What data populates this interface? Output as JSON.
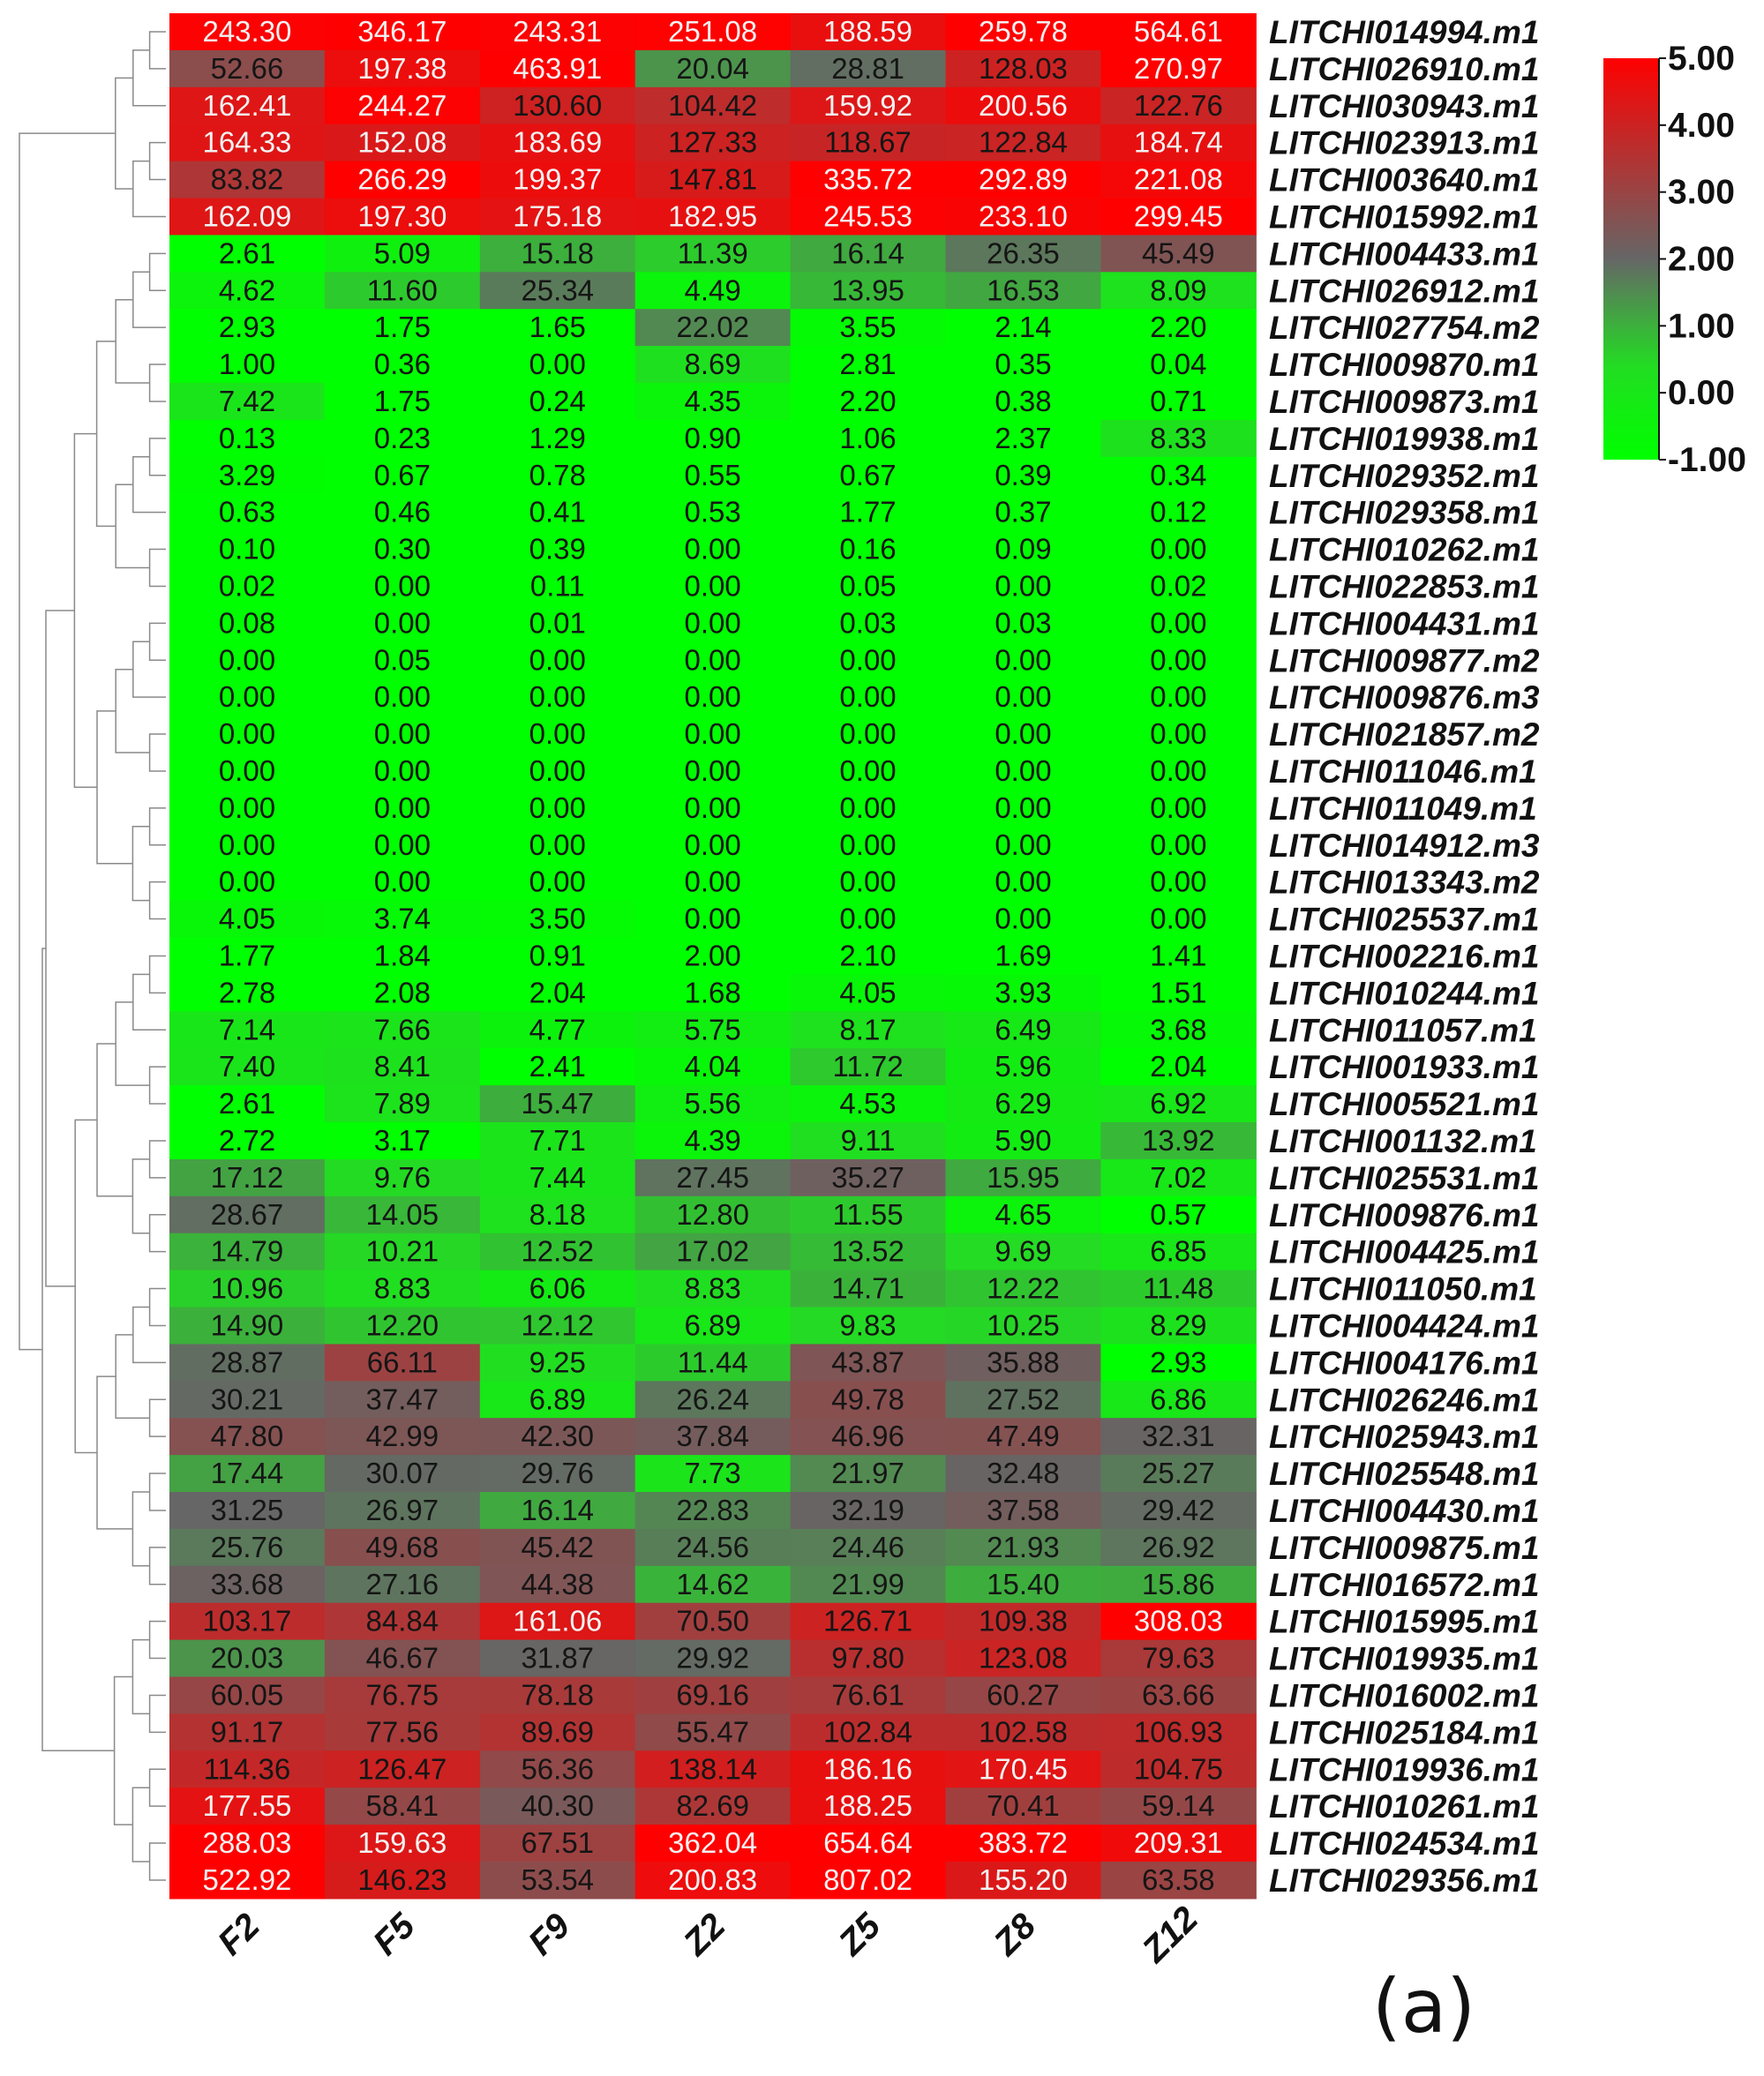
{
  "chart_data": {
    "type": "heatmap",
    "columns": [
      "F2",
      "F5",
      "F9",
      "Z2",
      "Z5",
      "Z8",
      "Z12"
    ],
    "rows": [
      "LITCHI014994.m1",
      "LITCHI026910.m1",
      "LITCHI030943.m1",
      "LITCHI023913.m1",
      "LITCHI003640.m1",
      "LITCHI015992.m1",
      "LITCHI004433.m1",
      "LITCHI026912.m1",
      "LITCHI027754.m2",
      "LITCHI009870.m1",
      "LITCHI009873.m1",
      "LITCHI019938.m1",
      "LITCHI029352.m1",
      "LITCHI029358.m1",
      "LITCHI010262.m1",
      "LITCHI022853.m1",
      "LITCHI004431.m1",
      "LITCHI009877.m2",
      "LITCHI009876.m3",
      "LITCHI021857.m2",
      "LITCHI011046.m1",
      "LITCHI011049.m1",
      "LITCHI014912.m3",
      "LITCHI013343.m2",
      "LITCHI025537.m1",
      "LITCHI002216.m1",
      "LITCHI010244.m1",
      "LITCHI011057.m1",
      "LITCHI001933.m1",
      "LITCHI005521.m1",
      "LITCHI001132.m1",
      "LITCHI025531.m1",
      "LITCHI009876.m1",
      "LITCHI004425.m1",
      "LITCHI011050.m1",
      "LITCHI004424.m1",
      "LITCHI004176.m1",
      "LITCHI026246.m1",
      "LITCHI025943.m1",
      "LITCHI025548.m1",
      "LITCHI004430.m1",
      "LITCHI009875.m1",
      "LITCHI016572.m1",
      "LITCHI015995.m1",
      "LITCHI019935.m1",
      "LITCHI016002.m1",
      "LITCHI025184.m1",
      "LITCHI019936.m1",
      "LITCHI010261.m1",
      "LITCHI024534.m1",
      "LITCHI029356.m1"
    ],
    "values": [
      [
        "243.30",
        "346.17",
        "243.31",
        "251.08",
        "188.59",
        "259.78",
        "564.61"
      ],
      [
        "52.66",
        "197.38",
        "463.91",
        "20.04",
        "28.81",
        "128.03",
        "270.97"
      ],
      [
        "162.41",
        "244.27",
        "130.60",
        "104.42",
        "159.92",
        "200.56",
        "122.76"
      ],
      [
        "164.33",
        "152.08",
        "183.69",
        "127.33",
        "118.67",
        "122.84",
        "184.74"
      ],
      [
        "83.82",
        "266.29",
        "199.37",
        "147.81",
        "335.72",
        "292.89",
        "221.08"
      ],
      [
        "162.09",
        "197.30",
        "175.18",
        "182.95",
        "245.53",
        "233.10",
        "299.45"
      ],
      [
        "2.61",
        "5.09",
        "15.18",
        "11.39",
        "16.14",
        "26.35",
        "45.49"
      ],
      [
        "4.62",
        "11.60",
        "25.34",
        "4.49",
        "13.95",
        "16.53",
        "8.09"
      ],
      [
        "2.93",
        "1.75",
        "1.65",
        "22.02",
        "3.55",
        "2.14",
        "2.20"
      ],
      [
        "1.00",
        "0.36",
        "0.00",
        "8.69",
        "2.81",
        "0.35",
        "0.04"
      ],
      [
        "7.42",
        "1.75",
        "0.24",
        "4.35",
        "2.20",
        "0.38",
        "0.71"
      ],
      [
        "0.13",
        "0.23",
        "1.29",
        "0.90",
        "1.06",
        "2.37",
        "8.33"
      ],
      [
        "3.29",
        "0.67",
        "0.78",
        "0.55",
        "0.67",
        "0.39",
        "0.34"
      ],
      [
        "0.63",
        "0.46",
        "0.41",
        "0.53",
        "1.77",
        "0.37",
        "0.12"
      ],
      [
        "0.10",
        "0.30",
        "0.39",
        "0.00",
        "0.16",
        "0.09",
        "0.00"
      ],
      [
        "0.02",
        "0.00",
        "0.11",
        "0.00",
        "0.05",
        "0.00",
        "0.02"
      ],
      [
        "0.08",
        "0.00",
        "0.01",
        "0.00",
        "0.03",
        "0.03",
        "0.00"
      ],
      [
        "0.00",
        "0.05",
        "0.00",
        "0.00",
        "0.00",
        "0.00",
        "0.00"
      ],
      [
        "0.00",
        "0.00",
        "0.00",
        "0.00",
        "0.00",
        "0.00",
        "0.00"
      ],
      [
        "0.00",
        "0.00",
        "0.00",
        "0.00",
        "0.00",
        "0.00",
        "0.00"
      ],
      [
        "0.00",
        "0.00",
        "0.00",
        "0.00",
        "0.00",
        "0.00",
        "0.00"
      ],
      [
        "0.00",
        "0.00",
        "0.00",
        "0.00",
        "0.00",
        "0.00",
        "0.00"
      ],
      [
        "0.00",
        "0.00",
        "0.00",
        "0.00",
        "0.00",
        "0.00",
        "0.00"
      ],
      [
        "0.00",
        "0.00",
        "0.00",
        "0.00",
        "0.00",
        "0.00",
        "0.00"
      ],
      [
        "4.05",
        "3.74",
        "3.50",
        "0.00",
        "0.00",
        "0.00",
        "0.00"
      ],
      [
        "1.77",
        "1.84",
        "0.91",
        "2.00",
        "2.10",
        "1.69",
        "1.41"
      ],
      [
        "2.78",
        "2.08",
        "2.04",
        "1.68",
        "4.05",
        "3.93",
        "1.51"
      ],
      [
        "7.14",
        "7.66",
        "4.77",
        "5.75",
        "8.17",
        "6.49",
        "3.68"
      ],
      [
        "7.40",
        "8.41",
        "2.41",
        "4.04",
        "11.72",
        "5.96",
        "2.04"
      ],
      [
        "2.61",
        "7.89",
        "15.47",
        "5.56",
        "4.53",
        "6.29",
        "6.92"
      ],
      [
        "2.72",
        "3.17",
        "7.71",
        "4.39",
        "9.11",
        "5.90",
        "13.92"
      ],
      [
        "17.12",
        "9.76",
        "7.44",
        "27.45",
        "35.27",
        "15.95",
        "7.02"
      ],
      [
        "28.67",
        "14.05",
        "8.18",
        "12.80",
        "11.55",
        "4.65",
        "0.57"
      ],
      [
        "14.79",
        "10.21",
        "12.52",
        "17.02",
        "13.52",
        "9.69",
        "6.85"
      ],
      [
        "10.96",
        "8.83",
        "6.06",
        "8.83",
        "14.71",
        "12.22",
        "11.48"
      ],
      [
        "14.90",
        "12.20",
        "12.12",
        "6.89",
        "9.83",
        "10.25",
        "8.29"
      ],
      [
        "28.87",
        "66.11",
        "9.25",
        "11.44",
        "43.87",
        "35.88",
        "2.93"
      ],
      [
        "30.21",
        "37.47",
        "6.89",
        "26.24",
        "49.78",
        "27.52",
        "6.86"
      ],
      [
        "47.80",
        "42.99",
        "42.30",
        "37.84",
        "46.96",
        "47.49",
        "32.31"
      ],
      [
        "17.44",
        "30.07",
        "29.76",
        "7.73",
        "21.97",
        "32.48",
        "25.27"
      ],
      [
        "31.25",
        "26.97",
        "16.14",
        "22.83",
        "32.19",
        "37.58",
        "29.42"
      ],
      [
        "25.76",
        "49.68",
        "45.42",
        "24.56",
        "24.46",
        "21.93",
        "26.92"
      ],
      [
        "33.68",
        "27.16",
        "44.38",
        "14.62",
        "21.99",
        "15.40",
        "15.86"
      ],
      [
        "103.17",
        "84.84",
        "161.06",
        "70.50",
        "126.71",
        "109.38",
        "308.03"
      ],
      [
        "20.03",
        "46.67",
        "31.87",
        "29.92",
        "97.80",
        "123.08",
        "79.63"
      ],
      [
        "60.05",
        "76.75",
        "78.18",
        "69.16",
        "76.61",
        "60.27",
        "63.66"
      ],
      [
        "91.17",
        "77.56",
        "89.69",
        "55.47",
        "102.84",
        "102.58",
        "106.93"
      ],
      [
        "114.36",
        "126.47",
        "56.36",
        "138.14",
        "186.16",
        "170.45",
        "104.75"
      ],
      [
        "177.55",
        "58.41",
        "40.30",
        "82.69",
        "188.25",
        "70.41",
        "59.14"
      ],
      [
        "288.03",
        "159.63",
        "67.51",
        "362.04",
        "654.64",
        "383.72",
        "209.31"
      ],
      [
        "522.92",
        "146.23",
        "53.54",
        "200.83",
        "807.02",
        "155.20",
        "63.58"
      ]
    ],
    "color_scale": {
      "ticks": [
        "5.00",
        "4.00",
        "3.00",
        "2.00",
        "1.00",
        "0.00",
        "-1.00"
      ],
      "range": [
        -1,
        5
      ],
      "stops": [
        {
          "value": -1,
          "color": "#00ff00"
        },
        {
          "value": 0.4,
          "color": "#22dd22"
        },
        {
          "value": 2,
          "color": "#666666"
        },
        {
          "value": 5,
          "color": "#ff0000"
        }
      ]
    },
    "dendrogram": "left",
    "legend_placement": "top-right",
    "panel_label": "(a)"
  }
}
